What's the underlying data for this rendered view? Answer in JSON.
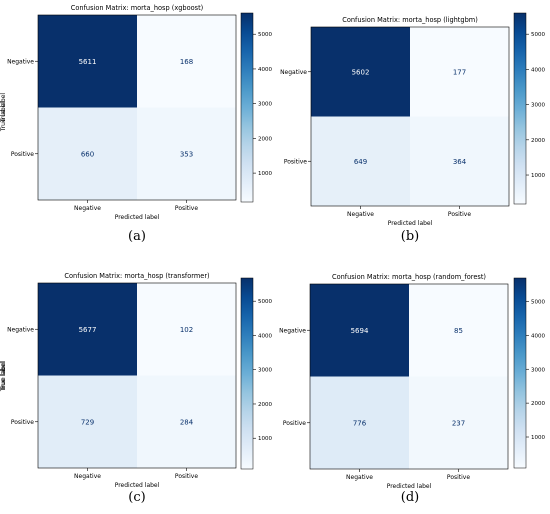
{
  "chart_data": [
    {
      "type": "heatmap",
      "title": "Confusion Matrix: morta_hosp (xgboost)",
      "xlabel": "Predicted label",
      "ylabel": "True label",
      "x_categories": [
        "Negative",
        "Positive"
      ],
      "y_categories": [
        "Negative",
        "Positive"
      ],
      "values": [
        [
          5611,
          168
        ],
        [
          660,
          353
        ]
      ],
      "colorbar": {
        "ticks": [
          1000,
          2000,
          3000,
          4000,
          5000
        ],
        "range": [
          168,
          5611
        ],
        "colormap": "Blues"
      },
      "caption": "(a)"
    },
    {
      "type": "heatmap",
      "title": "Confusion Matrix: morta_hosp (lightgbm)",
      "xlabel": "Predicted label",
      "ylabel": "True label",
      "x_categories": [
        "Negative",
        "Positive"
      ],
      "y_categories": [
        "Negative",
        "Positive"
      ],
      "values": [
        [
          5602,
          177
        ],
        [
          649,
          364
        ]
      ],
      "colorbar": {
        "ticks": [
          1000,
          2000,
          3000,
          4000,
          5000
        ],
        "range": [
          177,
          5602
        ],
        "colormap": "Blues"
      },
      "caption": "(b)"
    },
    {
      "type": "heatmap",
      "title": "Confusion Matrix: morta_hosp (transformer)",
      "xlabel": "Predicted label",
      "ylabel": "True label",
      "x_categories": [
        "Negative",
        "Positive"
      ],
      "y_categories": [
        "Negative",
        "Positive"
      ],
      "values": [
        [
          5677,
          102
        ],
        [
          729,
          284
        ]
      ],
      "colorbar": {
        "ticks": [
          1000,
          2000,
          3000,
          4000,
          5000
        ],
        "range": [
          102,
          5677
        ],
        "colormap": "Blues"
      },
      "caption": "(c)"
    },
    {
      "type": "heatmap",
      "title": "Confusion Matrix: morta_hosp (random_forest)",
      "xlabel": "Predicted label",
      "ylabel": "True label",
      "x_categories": [
        "Negative",
        "Positive"
      ],
      "y_categories": [
        "Negative",
        "Positive"
      ],
      "values": [
        [
          5694,
          85
        ],
        [
          776,
          237
        ]
      ],
      "colorbar": {
        "ticks": [
          1000,
          2000,
          3000,
          4000,
          5000
        ],
        "range": [
          85,
          5694
        ],
        "colormap": "Blues"
      },
      "caption": "(d)"
    }
  ],
  "colors": {
    "low": "#f7fbff",
    "high": "#08306b",
    "dark_text": "#08306b",
    "light_text": "#ffffff"
  }
}
